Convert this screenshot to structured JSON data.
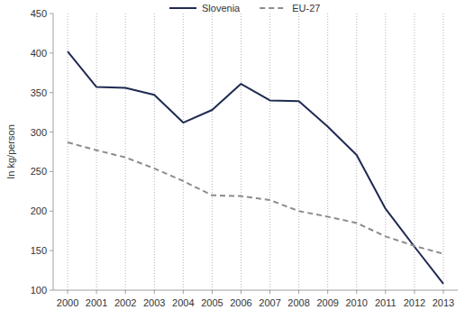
{
  "chart_data": {
    "type": "line",
    "y_label": "In kg/person",
    "categories": [
      "2000",
      "2001",
      "2002",
      "2003",
      "2004",
      "2005",
      "2006",
      "2007",
      "2008",
      "2009",
      "2010",
      "2011",
      "2012",
      "2013"
    ],
    "series": [
      {
        "name": "Slovenia",
        "color": "#1f2a52",
        "line_style": "solid",
        "values": [
          402,
          357,
          356,
          347,
          312,
          328,
          361,
          340,
          339,
          307,
          271,
          203,
          155,
          108
        ]
      },
      {
        "name": "EU-27",
        "color": "#8c8c8c",
        "line_style": "dashed",
        "values": [
          287,
          277,
          268,
          254,
          238,
          220,
          219,
          214,
          200,
          193,
          185,
          168,
          156,
          146
        ]
      }
    ],
    "ylim": [
      100,
      450
    ],
    "yticks": [
      100,
      150,
      200,
      250,
      300,
      350,
      400,
      450
    ],
    "grid": true,
    "legend": "top"
  }
}
